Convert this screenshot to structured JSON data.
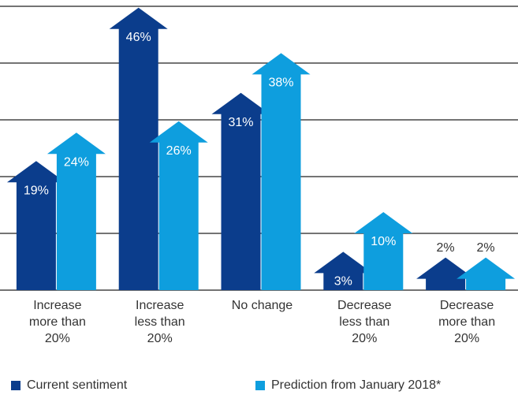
{
  "chart_data": {
    "type": "bar",
    "categories": [
      "Increase more than 20%",
      "Increase less than 20%",
      "No change",
      "Decrease less than 20%",
      "Decrease more than 20%"
    ],
    "series": [
      {
        "name": "Current sentiment",
        "color": "#0b3d8c",
        "values": [
          19,
          46,
          31,
          3,
          2
        ],
        "value_labels": [
          "19%",
          "46%",
          "31%",
          "3%",
          "2%"
        ]
      },
      {
        "name": "Prediction from January 2018*",
        "color": "#0e9ede",
        "values": [
          24,
          26,
          38,
          10,
          2
        ],
        "value_labels": [
          "24%",
          "26%",
          "38%",
          "10%",
          "2%"
        ]
      }
    ],
    "ylim": [
      0,
      50
    ],
    "yticks": [
      0,
      10,
      20,
      30,
      40,
      50
    ],
    "grid": true
  }
}
